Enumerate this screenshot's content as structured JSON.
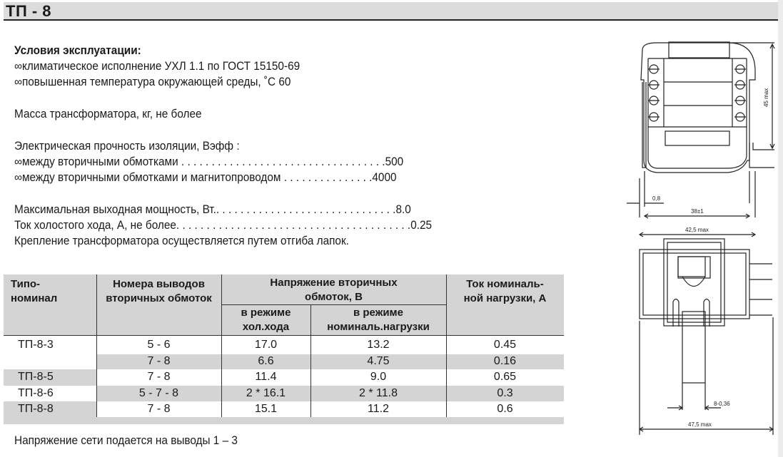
{
  "title": "ТП - 8",
  "conditions": {
    "heading": "Условия эксплуатации:",
    "items": [
      "∞климатическое исполнение УХЛ 1.1 по ГОСТ 15150-69",
      "∞повышенная температура окружающей среды, ˚С 60"
    ]
  },
  "mass": "Масса трансформатора, кг, не более",
  "insulation": {
    "heading": "Электрическая прочность изоляции, Вэфф :",
    "items": [
      {
        "label": "∞между вторичными обмотками",
        "value": "500"
      },
      {
        "label": "∞между вторичными обмотками и магнитопроводом",
        "value": "4000"
      }
    ]
  },
  "params": [
    {
      "label": "Максимальная выходная мощность, Вт.",
      "value": "8.0"
    },
    {
      "label": "Ток холостого хода, А, не более",
      "value": "0.25"
    }
  ],
  "mounting": "Крепление трансформатора осуществляется путем отгиба лапок.",
  "table": {
    "headers": {
      "type_1": "Типо-",
      "type_2": "номинал",
      "pins_1": "Номера  выводов",
      "pins_2": "вторичных обмоток",
      "voltage_1": "Напряжение вторичных",
      "voltage_2": "обмоток, В",
      "idle_1": "в режиме",
      "idle_2": "хол.хода",
      "load_1": "в режиме",
      "load_2": "номиналь.нагрузки",
      "current_1": "Ток номиналь-",
      "current_2": "ной нагрузки, А"
    },
    "rows": [
      {
        "type": "ТП-8-3",
        "pins": "5 - 6",
        "idle": "17.0",
        "load": "13.2",
        "current": "0.45"
      },
      {
        "type": "",
        "pins": "7 - 8",
        "idle": "6.6",
        "load": "4.75",
        "current": "0.16"
      },
      {
        "type": "ТП-8-5",
        "pins": "7 - 8",
        "idle": "11.4",
        "load": "9.0",
        "current": "0.65"
      },
      {
        "type": "ТП-8-6",
        "pins": "5 - 7 - 8",
        "idle": "2 * 16.1",
        "load": "2 * 11.8",
        "current": "0.3"
      },
      {
        "type": "ТП-8-8",
        "pins": "7 - 8",
        "idle": "15.1",
        "load": "11.2",
        "current": "0.6"
      }
    ]
  },
  "footnote": "Напряжение сети подается на выводы 1 – 3",
  "drawing": {
    "dim_height": "45 max",
    "dim_pin": "0,8",
    "dim_pitch": "38±1",
    "dim_width": "42,5 max",
    "dim_tab": "8-0,36",
    "dim_total": "47,5 max"
  }
}
